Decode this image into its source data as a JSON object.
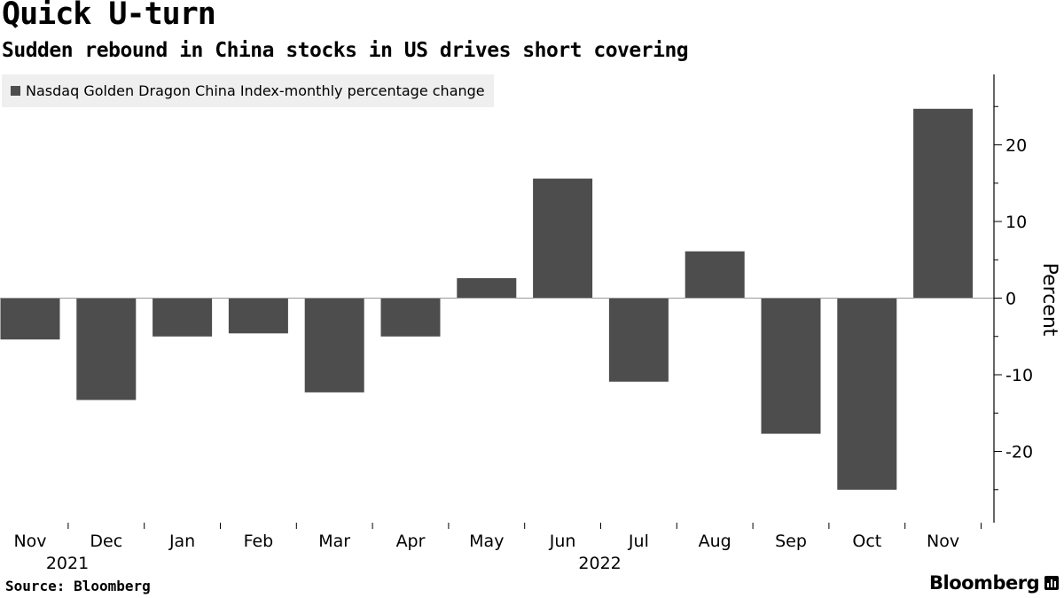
{
  "header": {
    "title": "Quick U-turn",
    "subtitle": "Sudden rebound in China stocks in US drives short covering"
  },
  "footer": {
    "source": "Source: Bloomberg",
    "brand": "Bloomberg"
  },
  "colors": {
    "bar": "#4d4d4d",
    "axis": "#000000",
    "legend_bg": "#efefef"
  },
  "chart_data": {
    "type": "bar",
    "categories": [
      "Nov",
      "Dec",
      "Jan",
      "Feb",
      "Mar",
      "Apr",
      "May",
      "Jun",
      "Jul",
      "Aug",
      "Sep",
      "Oct",
      "Nov"
    ],
    "year_labels": [
      {
        "label": "2021",
        "category_index": 0
      },
      {
        "label": "2022",
        "category_index": 7
      }
    ],
    "series": [
      {
        "name": "Nasdaq Golden Dragon China Index-monthly percentage change",
        "values": [
          -5.4,
          -13.3,
          -5.0,
          -4.6,
          -12.3,
          -5.0,
          2.6,
          15.6,
          -10.9,
          6.1,
          -17.7,
          -25.0,
          24.7
        ]
      }
    ],
    "ylabel": "Percent",
    "xlabel": "",
    "yticks": [
      20,
      10,
      0,
      -10,
      -20
    ],
    "ylim": [
      -29.3,
      29.3
    ],
    "y_axis_side": "right",
    "legend_position": "top-left",
    "grid": false
  }
}
